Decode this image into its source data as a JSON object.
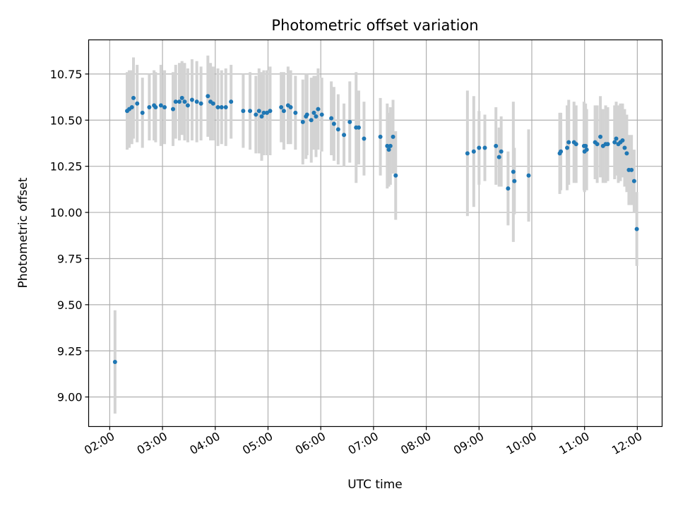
{
  "chart_data": {
    "type": "scatter",
    "title": "Photometric offset variation",
    "xlabel": "UTC time",
    "ylabel": "Photometric offset",
    "x_unit": "hour",
    "xlim": [
      1.6,
      12.47
    ],
    "ylim": [
      8.84,
      10.935
    ],
    "x_ticks": [
      2,
      3,
      4,
      5,
      6,
      7,
      8,
      9,
      10,
      11,
      12
    ],
    "x_tick_labels": [
      "02:00",
      "03:00",
      "04:00",
      "05:00",
      "06:00",
      "07:00",
      "08:00",
      "09:00",
      "10:00",
      "11:00",
      "12:00"
    ],
    "y_ticks": [
      9.0,
      9.25,
      9.5,
      9.75,
      10.0,
      10.25,
      10.5,
      10.75
    ],
    "y_tick_labels": [
      "9.00",
      "9.25",
      "9.50",
      "9.75",
      "10.00",
      "10.25",
      "10.50",
      "10.75"
    ],
    "grid": true,
    "colors": {
      "point": "#1f77b4",
      "errorbar": "#d3d3d3",
      "grid": "#b0b0b0"
    },
    "points": [
      [
        2.1,
        9.19,
        0.28
      ],
      [
        2.33,
        10.55,
        0.21
      ],
      [
        2.37,
        10.56,
        0.21
      ],
      [
        2.42,
        10.57,
        0.2
      ],
      [
        2.45,
        10.62,
        0.22
      ],
      [
        2.52,
        10.59,
        0.21
      ],
      [
        2.62,
        10.54,
        0.19
      ],
      [
        2.75,
        10.57,
        0.18
      ],
      [
        2.84,
        10.58,
        0.19
      ],
      [
        2.87,
        10.57,
        0.19
      ],
      [
        2.97,
        10.58,
        0.22
      ],
      [
        3.04,
        10.57,
        0.2
      ],
      [
        3.2,
        10.56,
        0.2
      ],
      [
        3.25,
        10.6,
        0.2
      ],
      [
        3.32,
        10.6,
        0.21
      ],
      [
        3.37,
        10.62,
        0.2
      ],
      [
        3.42,
        10.6,
        0.21
      ],
      [
        3.48,
        10.58,
        0.2
      ],
      [
        3.56,
        10.61,
        0.22
      ],
      [
        3.65,
        10.6,
        0.22
      ],
      [
        3.73,
        10.59,
        0.2
      ],
      [
        3.86,
        10.63,
        0.22
      ],
      [
        3.91,
        10.6,
        0.21
      ],
      [
        3.96,
        10.59,
        0.2
      ],
      [
        4.05,
        10.57,
        0.21
      ],
      [
        4.12,
        10.57,
        0.2
      ],
      [
        4.2,
        10.57,
        0.21
      ],
      [
        4.3,
        10.6,
        0.2
      ],
      [
        4.53,
        10.55,
        0.2
      ],
      [
        4.66,
        10.55,
        0.21
      ],
      [
        4.77,
        10.53,
        0.21
      ],
      [
        4.83,
        10.55,
        0.23
      ],
      [
        4.88,
        10.52,
        0.24
      ],
      [
        4.92,
        10.54,
        0.23
      ],
      [
        4.98,
        10.54,
        0.23
      ],
      [
        5.04,
        10.55,
        0.24
      ],
      [
        5.25,
        10.57,
        0.19
      ],
      [
        5.3,
        10.55,
        0.21
      ],
      [
        5.38,
        10.58,
        0.21
      ],
      [
        5.43,
        10.57,
        0.2
      ],
      [
        5.52,
        10.54,
        0.2
      ],
      [
        5.66,
        10.49,
        0.23
      ],
      [
        5.72,
        10.52,
        0.23
      ],
      [
        5.74,
        10.53,
        0.22
      ],
      [
        5.82,
        10.5,
        0.23
      ],
      [
        5.87,
        10.54,
        0.2
      ],
      [
        5.91,
        10.52,
        0.22
      ],
      [
        5.95,
        10.56,
        0.22
      ],
      [
        6.02,
        10.53,
        0.2
      ],
      [
        6.2,
        10.51,
        0.2
      ],
      [
        6.25,
        10.48,
        0.2
      ],
      [
        6.33,
        10.45,
        0.19
      ],
      [
        6.44,
        10.42,
        0.17
      ],
      [
        6.55,
        10.49,
        0.22
      ],
      [
        6.67,
        10.46,
        0.3
      ],
      [
        6.72,
        10.46,
        0.2
      ],
      [
        6.82,
        10.4,
        0.2
      ],
      [
        7.13,
        10.41,
        0.21
      ],
      [
        7.26,
        10.36,
        0.23
      ],
      [
        7.29,
        10.34,
        0.2
      ],
      [
        7.32,
        10.36,
        0.21
      ],
      [
        7.37,
        10.41,
        0.2
      ],
      [
        7.42,
        10.2,
        0.24
      ],
      [
        8.78,
        10.32,
        0.34
      ],
      [
        8.9,
        10.33,
        0.3
      ],
      [
        9.0,
        10.35,
        0.2
      ],
      [
        9.11,
        10.35,
        0.18
      ],
      [
        9.32,
        10.36,
        0.21
      ],
      [
        9.38,
        10.3,
        0.16
      ],
      [
        9.42,
        10.33,
        0.19
      ],
      [
        9.55,
        10.13,
        0.2
      ],
      [
        9.65,
        10.22,
        0.38
      ],
      [
        9.67,
        10.17,
        0.18
      ],
      [
        9.94,
        10.2,
        0.25
      ],
      [
        10.53,
        10.32,
        0.22
      ],
      [
        10.55,
        10.33,
        0.21
      ],
      [
        10.67,
        10.35,
        0.23
      ],
      [
        10.7,
        10.38,
        0.23
      ],
      [
        10.8,
        10.38,
        0.22
      ],
      [
        10.84,
        10.37,
        0.21
      ],
      [
        10.99,
        10.36,
        0.24
      ],
      [
        11.0,
        10.33,
        0.22
      ],
      [
        11.02,
        10.36,
        0.23
      ],
      [
        11.04,
        10.34,
        0.22
      ],
      [
        11.2,
        10.38,
        0.2
      ],
      [
        11.24,
        10.37,
        0.21
      ],
      [
        11.3,
        10.41,
        0.22
      ],
      [
        11.35,
        10.36,
        0.2
      ],
      [
        11.4,
        10.37,
        0.21
      ],
      [
        11.44,
        10.37,
        0.2
      ],
      [
        11.57,
        10.38,
        0.2
      ],
      [
        11.6,
        10.4,
        0.2
      ],
      [
        11.64,
        10.37,
        0.21
      ],
      [
        11.68,
        10.38,
        0.21
      ],
      [
        11.72,
        10.39,
        0.2
      ],
      [
        11.76,
        10.35,
        0.21
      ],
      [
        11.8,
        10.32,
        0.21
      ],
      [
        11.84,
        10.23,
        0.19
      ],
      [
        11.89,
        10.23,
        0.19
      ],
      [
        11.94,
        10.17,
        0.17
      ],
      [
        11.99,
        9.91,
        0.2
      ]
    ]
  }
}
